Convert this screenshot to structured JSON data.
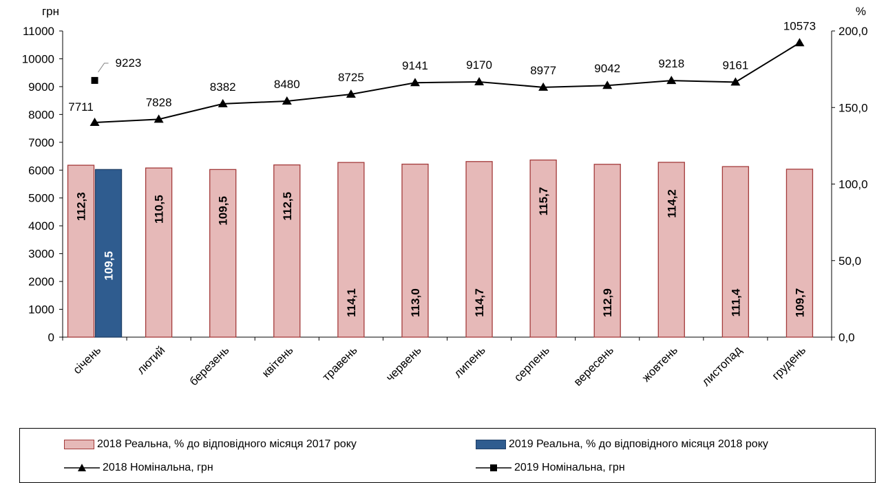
{
  "chart_data": {
    "type": "bar",
    "categories": [
      "січень",
      "лютий",
      "березень",
      "квітень",
      "травень",
      "червень",
      "липень",
      "серпень",
      "вересень",
      "жовтень",
      "листопад",
      "грудень"
    ],
    "left_axis": {
      "unit": "грн",
      "min": 0,
      "max": 11000,
      "step": 1000,
      "ticks": [
        "0",
        "1000",
        "2000",
        "3000",
        "4000",
        "5000",
        "6000",
        "7000",
        "8000",
        "9000",
        "10000",
        "11000"
      ]
    },
    "right_axis": {
      "unit": "%",
      "min": 0,
      "max": 200,
      "step": 50,
      "ticks": [
        "0,0",
        "50,0",
        "100,0",
        "150,0",
        "200,0"
      ]
    },
    "series": [
      {
        "name": "2018 Реальна, % до відповідного  місяця 2017 року",
        "kind": "bar",
        "axis": "right",
        "color": "#e6b9b8",
        "stroke": "#a33a3a",
        "values": [
          112.3,
          110.5,
          109.5,
          112.5,
          114.1,
          113.0,
          114.7,
          115.7,
          112.9,
          114.2,
          111.4,
          109.7
        ],
        "labels": [
          "112,3",
          "110,5",
          "109,5",
          "112,5",
          "114,1",
          "113,0",
          "114,7",
          "115,7",
          "112,9",
          "114,2",
          "111,4",
          "109,7"
        ]
      },
      {
        "name": "2019 Реальна, % до відповідного  місяця 2018 року",
        "kind": "bar",
        "axis": "right",
        "color": "#2f5c8f",
        "stroke": "#1f3f66",
        "values": [
          109.5,
          null,
          null,
          null,
          null,
          null,
          null,
          null,
          null,
          null,
          null,
          null
        ],
        "labels": [
          "109,5",
          "",
          "",
          "",
          "",
          "",
          "",
          "",
          "",
          "",
          "",
          ""
        ]
      },
      {
        "name": "2018 Номінальна, грн",
        "kind": "line",
        "axis": "left",
        "marker": "triangle",
        "color": "#000000",
        "values": [
          7711,
          7828,
          8382,
          8480,
          8725,
          9141,
          9170,
          8977,
          9042,
          9218,
          9161,
          10573
        ],
        "labels": [
          "7711",
          "7828",
          "8382",
          "8480",
          "8725",
          "9141",
          "9170",
          "8977",
          "9042",
          "9218",
          "9161",
          "10573"
        ]
      },
      {
        "name": "2019 Номінальна, грн",
        "kind": "line",
        "axis": "left",
        "marker": "square",
        "color": "#000000",
        "values": [
          9223,
          null,
          null,
          null,
          null,
          null,
          null,
          null,
          null,
          null,
          null,
          null
        ],
        "labels": [
          "9223",
          "",
          "",
          "",
          "",
          "",
          "",
          "",
          "",
          "",
          "",
          ""
        ]
      }
    ],
    "grid": false,
    "legend_position": "bottom"
  }
}
